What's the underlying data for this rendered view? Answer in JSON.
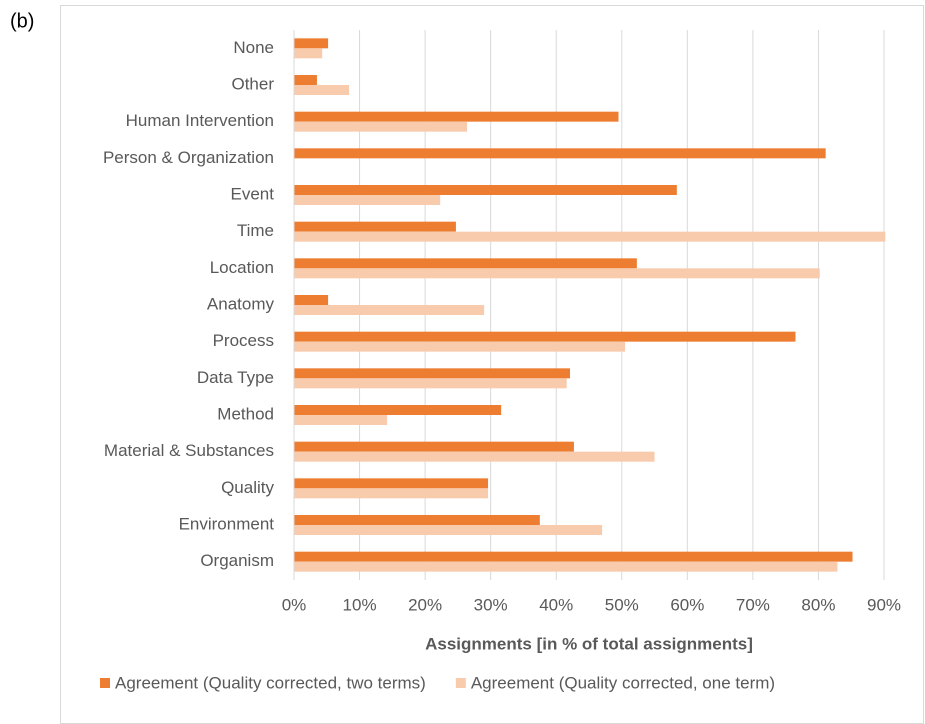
{
  "panel_label": "(b)",
  "chart_data": {
    "type": "barh",
    "x_axis_label": "Assignments [in % of total assignments]",
    "categories": [
      "None",
      "Other",
      "Human Intervention",
      "Person & Organization",
      "Event",
      "Time",
      "Location",
      "Anatomy",
      "Process",
      "Data Type",
      "Method",
      "Material & Substances",
      "Quality",
      "Environment",
      "Organism"
    ],
    "series": [
      {
        "name": "Agreement (Quality corrected, two terms)",
        "color": "#ed7d31",
        "values": [
          5.2,
          3.5,
          49.5,
          81.1,
          58.4,
          24.7,
          52.3,
          5.2,
          76.5,
          42.1,
          31.6,
          42.7,
          29.6,
          37.5,
          85.2
        ]
      },
      {
        "name": "Agreement (Quality corrected, one term)",
        "color": "#f8cbad",
        "values": [
          4.3,
          8.4,
          26.4,
          0,
          22.3,
          90.2,
          80.2,
          29,
          50.5,
          41.6,
          14.2,
          55,
          29.6,
          47,
          82.9
        ]
      }
    ],
    "xlim": [
      0,
      90
    ],
    "xticks": [
      {
        "value": 0,
        "label": "0%"
      },
      {
        "value": 10,
        "label": "10%"
      },
      {
        "value": 20,
        "label": "20%"
      },
      {
        "value": 30,
        "label": "30%"
      },
      {
        "value": 40,
        "label": "40%"
      },
      {
        "value": 50,
        "label": "50%"
      },
      {
        "value": 60,
        "label": "60%"
      },
      {
        "value": 70,
        "label": "70%"
      },
      {
        "value": 80,
        "label": "80%"
      },
      {
        "value": 90,
        "label": "90%"
      }
    ],
    "grid": true,
    "legend": "bottom"
  }
}
